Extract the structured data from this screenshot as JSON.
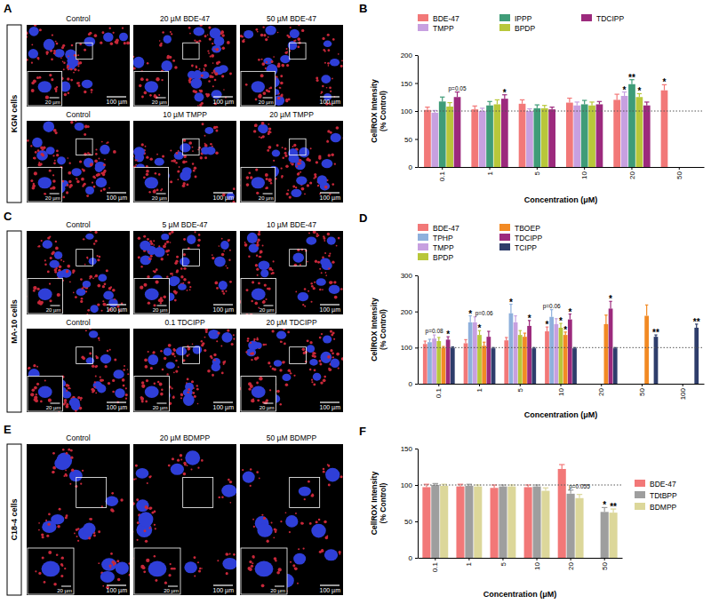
{
  "panels": [
    {
      "label": "A",
      "cell_line": "KGN cells",
      "rows": [
        [
          "Control",
          "20 µM BDE-47",
          "50 µM BDE-47"
        ],
        [
          "Control",
          "10 µM TMPP",
          "20 µM TMPP"
        ]
      ],
      "inset_scale": "20 µm",
      "scale": "100 µm"
    },
    {
      "label": "C",
      "cell_line": "MA-10 cells",
      "rows": [
        [
          "Control",
          "5 µM BDE-47",
          "10 µM BDE-47"
        ],
        [
          "Control",
          "0.1 TDCIPP",
          "20 µM TDCIPP"
        ]
      ],
      "inset_scale": "20 µm",
      "scale": "100 µm"
    },
    {
      "label": "E",
      "cell_line": "C18-4 cells",
      "rows": [
        [
          "Control",
          "20 µM BDMPP",
          "50 µM BDMPP"
        ]
      ],
      "inset_scale": "20 µm",
      "scale": "100 µm"
    }
  ],
  "chart_data": [
    {
      "panel": "B",
      "type": "bar",
      "ylabel": [
        "CellROX Intensity",
        "(% Control)"
      ],
      "xlabel": "Concentration (μM)",
      "categories": [
        "0.1",
        "1",
        "5",
        "10",
        "20",
        "50"
      ],
      "ylim": [
        0,
        200
      ],
      "yticks": [
        0,
        50,
        100,
        150,
        200
      ],
      "baseline": 100,
      "legend": "top",
      "series": [
        {
          "name": "BDE-47",
          "color": "#f27878",
          "values": [
            102,
            103,
            113,
            115,
            120,
            137
          ],
          "error": [
            5,
            6,
            7,
            8,
            10,
            10
          ],
          "significance": [
            null,
            null,
            null,
            null,
            null,
            "*"
          ]
        },
        {
          "name": "TMPP",
          "color": "#c7a0e0",
          "values": [
            97,
            100,
            100,
            110,
            127,
            null
          ],
          "error": [
            4,
            5,
            4,
            6,
            7,
            null
          ],
          "significance": [
            null,
            null,
            null,
            null,
            "*",
            null
          ]
        },
        {
          "name": "IPPP",
          "color": "#3f9c78",
          "values": [
            117,
            110,
            105,
            112,
            148,
            null
          ],
          "error": [
            8,
            7,
            6,
            7,
            8,
            null
          ],
          "significance": [
            null,
            null,
            null,
            null,
            "**",
            null
          ]
        },
        {
          "name": "BPDP",
          "color": "#b8c73a",
          "values": [
            108,
            112,
            105,
            110,
            125,
            null
          ],
          "error": [
            7,
            8,
            5,
            6,
            6,
            null
          ],
          "significance": [
            null,
            null,
            null,
            null,
            "*",
            null
          ]
        },
        {
          "name": "TDCIPP",
          "color": "#9c2a7d",
          "values": [
            125,
            122,
            103,
            112,
            110,
            null
          ],
          "error": [
            9,
            7,
            4,
            5,
            6,
            null
          ],
          "significance": [
            "p=0.05",
            "*",
            null,
            null,
            null,
            null
          ]
        }
      ]
    },
    {
      "panel": "D",
      "type": "bar",
      "ylabel": [
        "CellROX Intensity",
        "(% Control)"
      ],
      "xlabel": "Concentration (μM)",
      "categories": [
        "0.1",
        "1",
        "5",
        "10",
        "20",
        "50",
        "100"
      ],
      "ylim": [
        0,
        300
      ],
      "yticks": [
        0,
        100,
        200,
        300
      ],
      "baseline": 100,
      "legend": "top",
      "series": [
        {
          "name": "BDE-47",
          "color": "#f27878",
          "values": [
            110,
            112,
            120,
            145,
            null,
            null,
            null
          ],
          "error": [
            8,
            10,
            8,
            12,
            null,
            null,
            null
          ],
          "significance": [
            null,
            null,
            null,
            "*",
            null,
            null,
            null
          ]
        },
        {
          "name": "TPHP",
          "color": "#8eb0dc",
          "values": [
            115,
            170,
            195,
            185,
            null,
            null,
            null
          ],
          "error": [
            8,
            18,
            25,
            20,
            null,
            null,
            null
          ],
          "significance": [
            null,
            "*",
            "*",
            "p=0.06",
            null,
            null,
            null
          ]
        },
        {
          "name": "TMPP",
          "color": "#c7a0e0",
          "values": [
            125,
            170,
            170,
            165,
            null,
            null,
            null
          ],
          "error": [
            10,
            15,
            18,
            15,
            null,
            null,
            null
          ],
          "significance": [
            "p=0.08",
            null,
            null,
            null,
            null,
            null,
            null
          ]
        },
        {
          "name": "BPDP",
          "color": "#b8c73a",
          "values": [
            118,
            135,
            135,
            155,
            null,
            null,
            null
          ],
          "error": [
            10,
            12,
            12,
            12,
            null,
            null,
            null
          ],
          "significance": [
            null,
            "*",
            null,
            "*",
            null,
            null,
            null
          ]
        },
        {
          "name": "TBOEP",
          "color": "#f28a24",
          "values": [
            100,
            105,
            130,
            135,
            165,
            188,
            null
          ],
          "error": [
            3,
            10,
            10,
            8,
            25,
            30,
            null
          ],
          "significance": [
            null,
            "p=0.06",
            null,
            "*",
            null,
            null,
            null
          ]
        },
        {
          "name": "TDCIPP",
          "color": "#9c2a7d",
          "values": [
            122,
            130,
            160,
            178,
            208,
            null,
            null
          ],
          "error": [
            8,
            15,
            15,
            15,
            20,
            null,
            null
          ],
          "significance": [
            "*",
            null,
            "*",
            "*",
            "*",
            null,
            null
          ]
        },
        {
          "name": "TCIPP",
          "color": "#2e3d6b",
          "values": [
            100,
            98,
            98,
            98,
            98,
            130,
            155
          ],
          "error": [
            2,
            2,
            2,
            2,
            2,
            5,
            10
          ],
          "significance": [
            null,
            null,
            null,
            null,
            null,
            "**",
            "**"
          ]
        }
      ]
    },
    {
      "panel": "F",
      "type": "bar",
      "ylabel": [
        "CellROX Intensity",
        "(% Control)"
      ],
      "xlabel": "Concentration (μM)",
      "categories": [
        "0.1",
        "1",
        "5",
        "10",
        "20",
        "50"
      ],
      "ylim": [
        0,
        150
      ],
      "yticks": [
        0,
        50,
        100,
        150
      ],
      "baseline": 100,
      "legend": "right",
      "series": [
        {
          "name": "BDE-47",
          "color": "#f27878",
          "values": [
            97,
            98,
            96,
            97,
            122,
            null
          ],
          "error": [
            4,
            3,
            4,
            3,
            6,
            null
          ],
          "significance": [
            null,
            null,
            null,
            null,
            null,
            null
          ]
        },
        {
          "name": "TDtBPP",
          "color": "#9e9e9e",
          "values": [
            100,
            99,
            98,
            98,
            88,
            63
          ],
          "error": [
            2,
            2,
            2,
            2,
            5,
            6
          ],
          "significance": [
            null,
            null,
            null,
            null,
            null,
            "*"
          ]
        },
        {
          "name": "BDMPP",
          "color": "#dcd79a",
          "values": [
            99,
            98,
            98,
            92,
            82,
            62
          ],
          "error": [
            2,
            2,
            2,
            4,
            5,
            5
          ],
          "significance": [
            null,
            null,
            null,
            null,
            "p=0.055",
            "**"
          ]
        }
      ]
    }
  ]
}
